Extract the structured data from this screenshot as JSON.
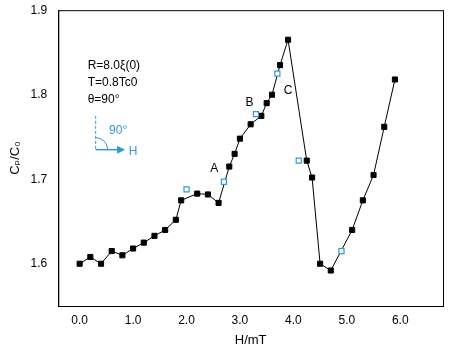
{
  "chart_data": {
    "type": "line",
    "x_label": "H/mT",
    "y_label": "Cₚ/C₀",
    "xlim": [
      -0.4,
      6.8
    ],
    "ylim": [
      1.55,
      1.9
    ],
    "xticks": [
      {
        "value": 0,
        "label": "0.0"
      },
      {
        "value": 1,
        "label": "1.0"
      },
      {
        "value": 2,
        "label": "2.0"
      },
      {
        "value": 3,
        "label": "3.0"
      },
      {
        "value": 4,
        "label": "4.0"
      },
      {
        "value": 5,
        "label": "5.0"
      },
      {
        "value": 6,
        "label": "6.0"
      }
    ],
    "yticks": [
      1.6,
      1.7,
      1.8,
      1.9
    ],
    "grid": false,
    "series": [
      {
        "color": "#000000",
        "marker": "square",
        "line_style": "solid",
        "x": [
          0.0,
          0.2,
          0.4,
          0.6,
          0.8,
          1.0,
          1.2,
          1.4,
          1.6,
          1.8,
          1.9,
          2.2,
          2.4,
          2.6,
          2.8,
          2.9,
          3.0,
          3.2,
          3.4,
          3.5,
          3.6,
          3.75,
          3.9,
          4.25,
          4.35,
          4.5,
          4.7,
          5.1,
          5.3,
          5.5,
          5.7,
          5.9
        ],
        "values": [
          1.6,
          1.608,
          1.6,
          1.615,
          1.61,
          1.618,
          1.625,
          1.633,
          1.64,
          1.652,
          1.675,
          1.683,
          1.682,
          1.672,
          1.715,
          1.73,
          1.748,
          1.765,
          1.775,
          1.79,
          1.8,
          1.835,
          1.865,
          1.722,
          1.702,
          1.6,
          1.592,
          1.64,
          1.675,
          1.705,
          1.762,
          1.818
        ]
      },
      {
        "color": "#3399cc",
        "marker": "open_square",
        "line_style": "none",
        "x": [
          2.0,
          2.7,
          3.3,
          3.7,
          4.1,
          4.9
        ],
        "values": [
          1.688,
          1.697,
          1.777,
          1.825,
          1.722,
          1.615
        ]
      }
    ],
    "annotations": [
      "R=8.0ξ(0)",
      "T=0.8Tc0",
      "θ=90°",
      "A",
      "B",
      "C",
      "90°",
      "H"
    ]
  }
}
